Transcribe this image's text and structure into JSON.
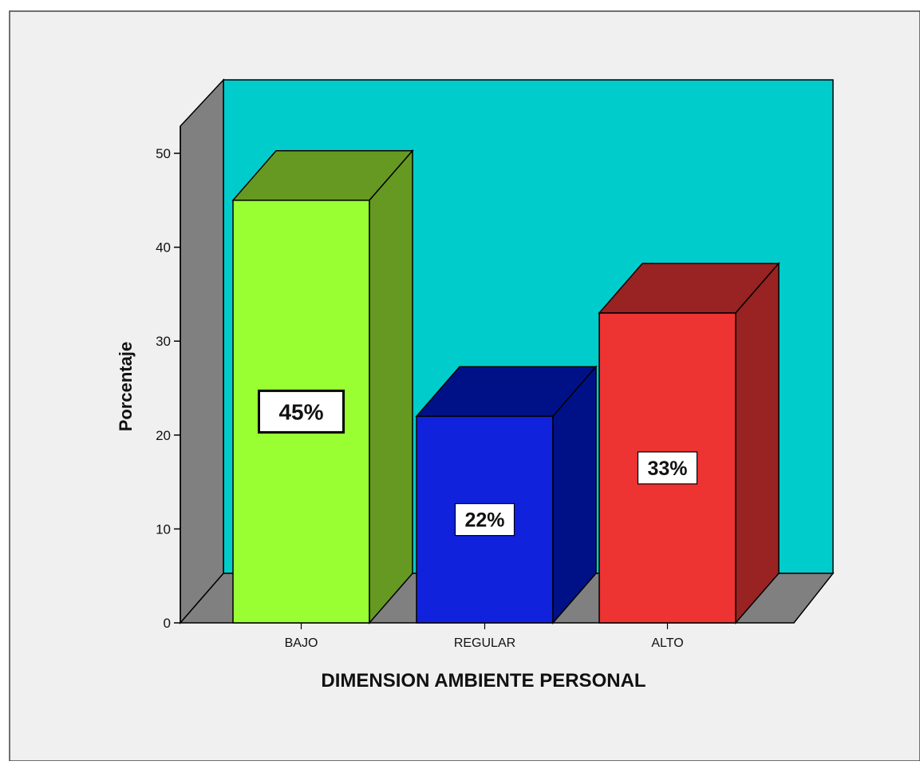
{
  "chart_data": {
    "type": "bar",
    "categories": [
      "BAJO",
      "REGULAR",
      "ALTO"
    ],
    "values": [
      45,
      22,
      33
    ],
    "data_labels": [
      "45%",
      "22%",
      "33%"
    ],
    "xlabel": "DIMENSION AMBIENTE PERSONAL",
    "ylabel": "Porcentaje",
    "ylim": [
      0,
      50
    ],
    "yticks": [
      "0",
      "10",
      "20",
      "30",
      "40",
      "50"
    ],
    "grid": false,
    "legend": "none",
    "three_d": true,
    "colors": {
      "background": "#f0f0f0",
      "back_wall": "#00cccc",
      "side_wall": "#808080",
      "floor": "#808080",
      "bars": [
        {
          "front": "#99ff33",
          "top": "#669922",
          "side": "#669922"
        },
        {
          "front": "#1122dd",
          "top": "#001188",
          "side": "#001188"
        },
        {
          "front": "#ee3333",
          "top": "#992222",
          "side": "#992222"
        }
      ]
    }
  }
}
